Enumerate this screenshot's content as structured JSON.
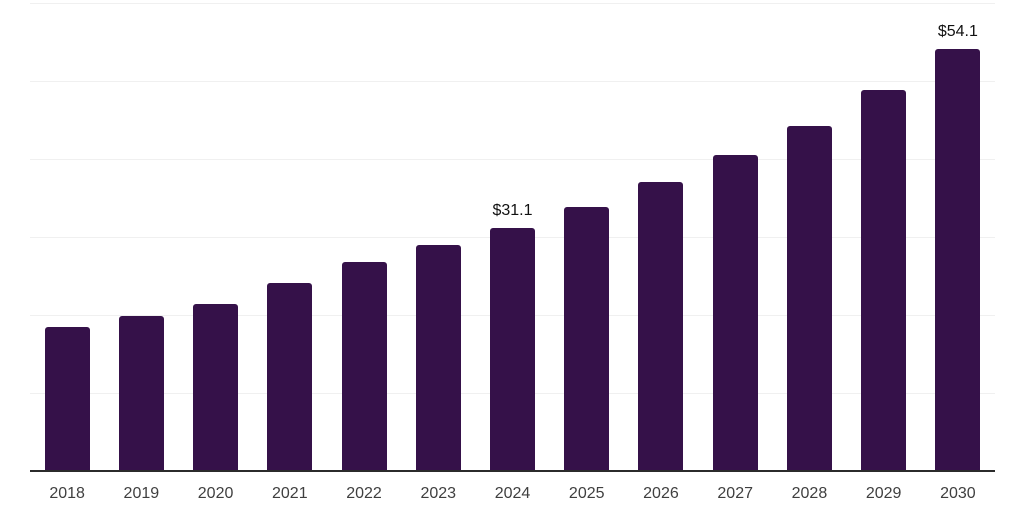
{
  "chart_data": {
    "type": "bar",
    "categories": [
      "2018",
      "2019",
      "2020",
      "2021",
      "2022",
      "2023",
      "2024",
      "2025",
      "2026",
      "2027",
      "2028",
      "2029",
      "2030"
    ],
    "values": [
      18.4,
      19.9,
      21.4,
      24.1,
      26.8,
      29.0,
      31.1,
      33.9,
      37.0,
      40.5,
      44.2,
      48.9,
      54.1
    ],
    "value_labels": {
      "2024": "$31.1",
      "2030": "$54.1"
    },
    "ylim": [
      0,
      60
    ],
    "gridline_step": 10,
    "grid": true,
    "legend": false,
    "xlabel": "",
    "ylabel": "",
    "colors": {
      "bar": "#351149",
      "axis": "#2b2b2b",
      "gridline": "#f0f0f0",
      "value_label_text": "#111111",
      "tick_label_text": "#3f3f3f",
      "background": "#ffffff"
    }
  }
}
